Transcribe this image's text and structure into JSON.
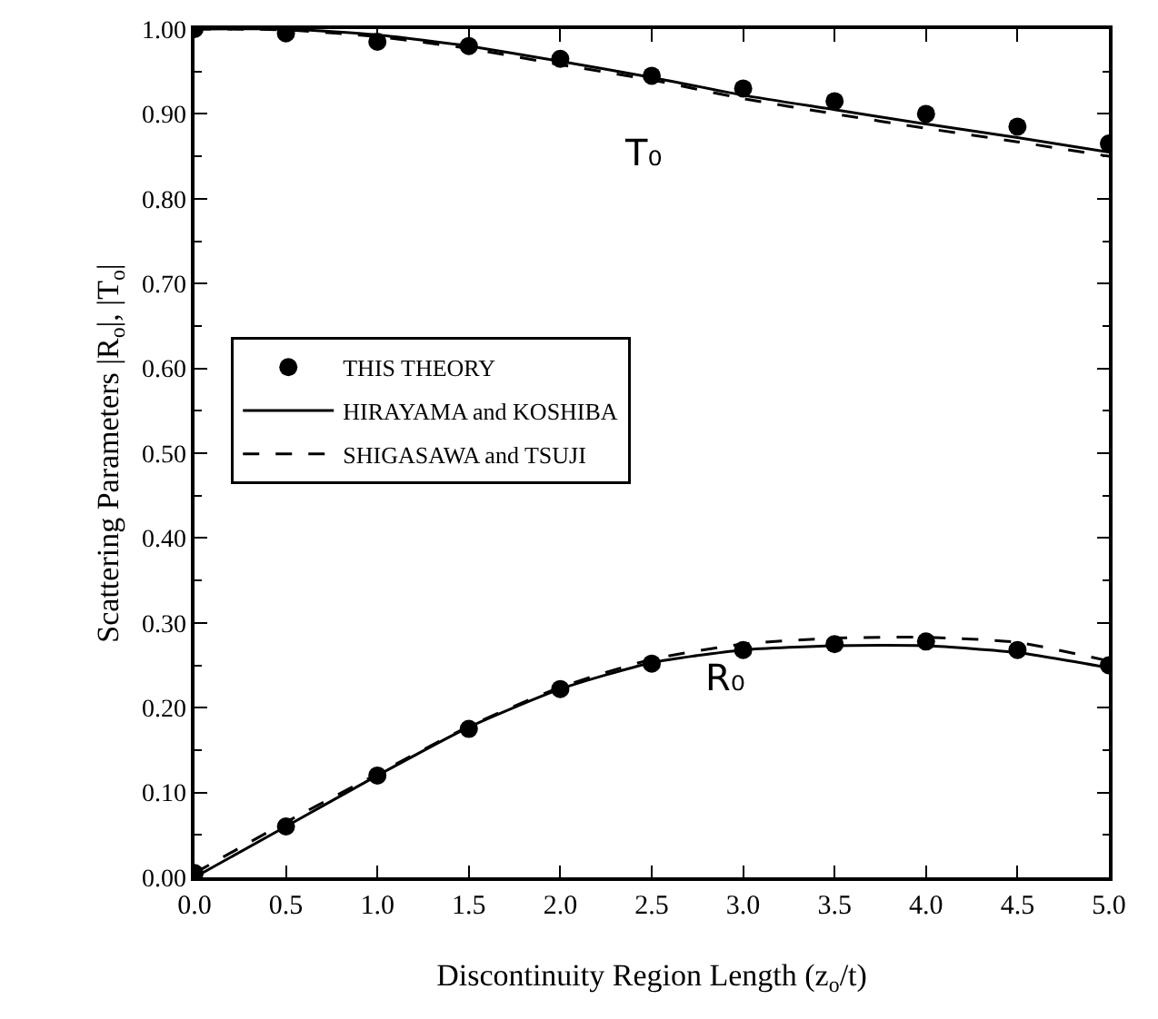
{
  "chart_data": {
    "type": "line",
    "xlabel": "Discontinuity Region Length (z$_{o}$/t)",
    "ylabel": "Scattering Parameters |R$_{o}$|, |T$_{o}$|",
    "xlim": [
      0,
      5
    ],
    "xticks": [
      {
        "value": 0,
        "label": "0.0"
      },
      {
        "value": 0.5,
        "label": "0.5"
      },
      {
        "value": 1,
        "label": "1.0"
      },
      {
        "value": 1.5,
        "label": "1.5"
      },
      {
        "value": 2,
        "label": "2.0"
      },
      {
        "value": 2.5,
        "label": "2.5"
      },
      {
        "value": 3,
        "label": "3.0"
      },
      {
        "value": 3.5,
        "label": "3.5"
      },
      {
        "value": 4,
        "label": "4.0"
      },
      {
        "value": 4.5,
        "label": "4.5"
      },
      {
        "value": 5,
        "label": "5.0"
      }
    ],
    "ylim": [
      0,
      1
    ],
    "yticks": [
      {
        "value": 0,
        "label": "0.00"
      },
      {
        "value": 0.1,
        "label": "0.10"
      },
      {
        "value": 0.2,
        "label": "0.20"
      },
      {
        "value": 0.3,
        "label": "0.30"
      },
      {
        "value": 0.4,
        "label": "0.40"
      },
      {
        "value": 0.5,
        "label": "0.50"
      },
      {
        "value": 0.6,
        "label": "0.60"
      },
      {
        "value": 0.7,
        "label": "0.70"
      },
      {
        "value": 0.8,
        "label": "0.80"
      },
      {
        "value": 0.9,
        "label": "0.90"
      },
      {
        "value": 1,
        "label": "1.00"
      }
    ],
    "legend": "left",
    "series": [
      {
        "name": "THIS THEORY",
        "type": "scatter",
        "marker": "circle",
        "color": "#000000",
        "x": [
          0,
          0.5,
          1,
          1.5,
          2,
          2.5,
          3,
          3.5,
          4,
          4.5,
          5,
          0,
          0.5,
          1,
          1.5,
          2,
          2.5,
          3,
          3.5,
          4,
          4.5,
          5
        ],
        "values": [
          1.0,
          0.995,
          0.985,
          0.98,
          0.965,
          0.945,
          0.93,
          0.915,
          0.9,
          0.885,
          0.865,
          0.005,
          0.06,
          0.12,
          0.175,
          0.222,
          0.252,
          0.268,
          0.275,
          0.278,
          0.268,
          0.25
        ]
      },
      {
        "name": "HIRAYAMA and KOSHIBA",
        "line_style": "solid",
        "color": "#000000",
        "x": [
          0,
          0.5,
          1,
          1.5,
          2,
          2.5,
          3,
          3.5,
          4,
          4.5,
          5
        ],
        "values": [
          1.0,
          1.0,
          0.993,
          0.98,
          0.962,
          0.943,
          0.922,
          0.905,
          0.888,
          0.872,
          0.855
        ]
      },
      {
        "line_style": "solid",
        "color": "#000000",
        "x": [
          0,
          0.5,
          1,
          1.5,
          2,
          2.5,
          3,
          3.5,
          4,
          4.5,
          5
        ],
        "values": [
          0.0,
          0.06,
          0.12,
          0.177,
          0.222,
          0.253,
          0.268,
          0.273,
          0.273,
          0.265,
          0.247
        ]
      },
      {
        "name": "SHIGASAWA and TSUJI",
        "line_style": "dashed",
        "color": "#000000",
        "x": [
          0,
          0.5,
          1,
          1.5,
          2,
          2.5,
          3,
          3.5,
          4,
          4.5,
          5
        ],
        "values": [
          1.0,
          0.999,
          0.991,
          0.977,
          0.958,
          0.94,
          0.918,
          0.9,
          0.883,
          0.867,
          0.85
        ]
      },
      {
        "line_style": "dashed",
        "color": "#000000",
        "x": [
          0,
          0.5,
          1,
          1.5,
          2,
          2.5,
          3,
          3.5,
          4,
          4.5,
          5
        ],
        "values": [
          0.005,
          0.065,
          0.122,
          0.178,
          0.224,
          0.257,
          0.275,
          0.282,
          0.283,
          0.277,
          0.255
        ]
      }
    ],
    "annotations": [
      "T₀",
      "R₀"
    ]
  }
}
